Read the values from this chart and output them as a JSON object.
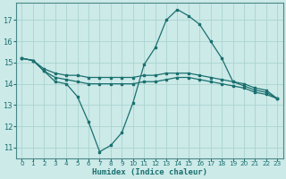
{
  "xlabel": "Humidex (Indice chaleur)",
  "bg_color": "#cceae8",
  "grid_color": "#aad4d0",
  "line_color": "#1a7070",
  "xlim": [
    -0.5,
    23.5
  ],
  "ylim": [
    10.5,
    17.8
  ],
  "yticks": [
    11,
    12,
    13,
    14,
    15,
    16,
    17
  ],
  "xticks": [
    0,
    1,
    2,
    3,
    4,
    5,
    6,
    7,
    8,
    9,
    10,
    11,
    12,
    13,
    14,
    15,
    16,
    17,
    18,
    19,
    20,
    21,
    22,
    23
  ],
  "series": [
    {
      "x": [
        0,
        1,
        2,
        3,
        4,
        5,
        6,
        7,
        8,
        9,
        10,
        11,
        12,
        13,
        14,
        15,
        16,
        17,
        18,
        19,
        20,
        21,
        22,
        23
      ],
      "y": [
        15.2,
        15.1,
        14.6,
        14.1,
        14.0,
        13.4,
        12.2,
        10.8,
        11.1,
        11.7,
        13.1,
        14.9,
        15.7,
        17.0,
        17.5,
        17.2,
        16.8,
        16.0,
        15.2,
        14.1,
        13.9,
        13.7,
        13.6,
        13.3
      ]
    },
    {
      "x": [
        0,
        1,
        2,
        3,
        4,
        5,
        6,
        7,
        8,
        9,
        10,
        11,
        12,
        13,
        14,
        15,
        16,
        17,
        18,
        19,
        20,
        21,
        22,
        23
      ],
      "y": [
        15.2,
        15.1,
        14.7,
        14.5,
        14.4,
        14.4,
        14.3,
        14.3,
        14.3,
        14.3,
        14.3,
        14.4,
        14.4,
        14.5,
        14.5,
        14.5,
        14.4,
        14.3,
        14.2,
        14.1,
        14.0,
        13.8,
        13.7,
        13.3
      ]
    },
    {
      "x": [
        0,
        1,
        2,
        3,
        4,
        5,
        6,
        7,
        8,
        9,
        10,
        11,
        12,
        13,
        14,
        15,
        16,
        17,
        18,
        19,
        20,
        21,
        22,
        23
      ],
      "y": [
        15.2,
        15.1,
        14.6,
        14.3,
        14.2,
        14.1,
        14.0,
        14.0,
        14.0,
        14.0,
        14.0,
        14.1,
        14.1,
        14.2,
        14.3,
        14.3,
        14.2,
        14.1,
        14.0,
        13.9,
        13.8,
        13.6,
        13.5,
        13.3
      ]
    }
  ]
}
